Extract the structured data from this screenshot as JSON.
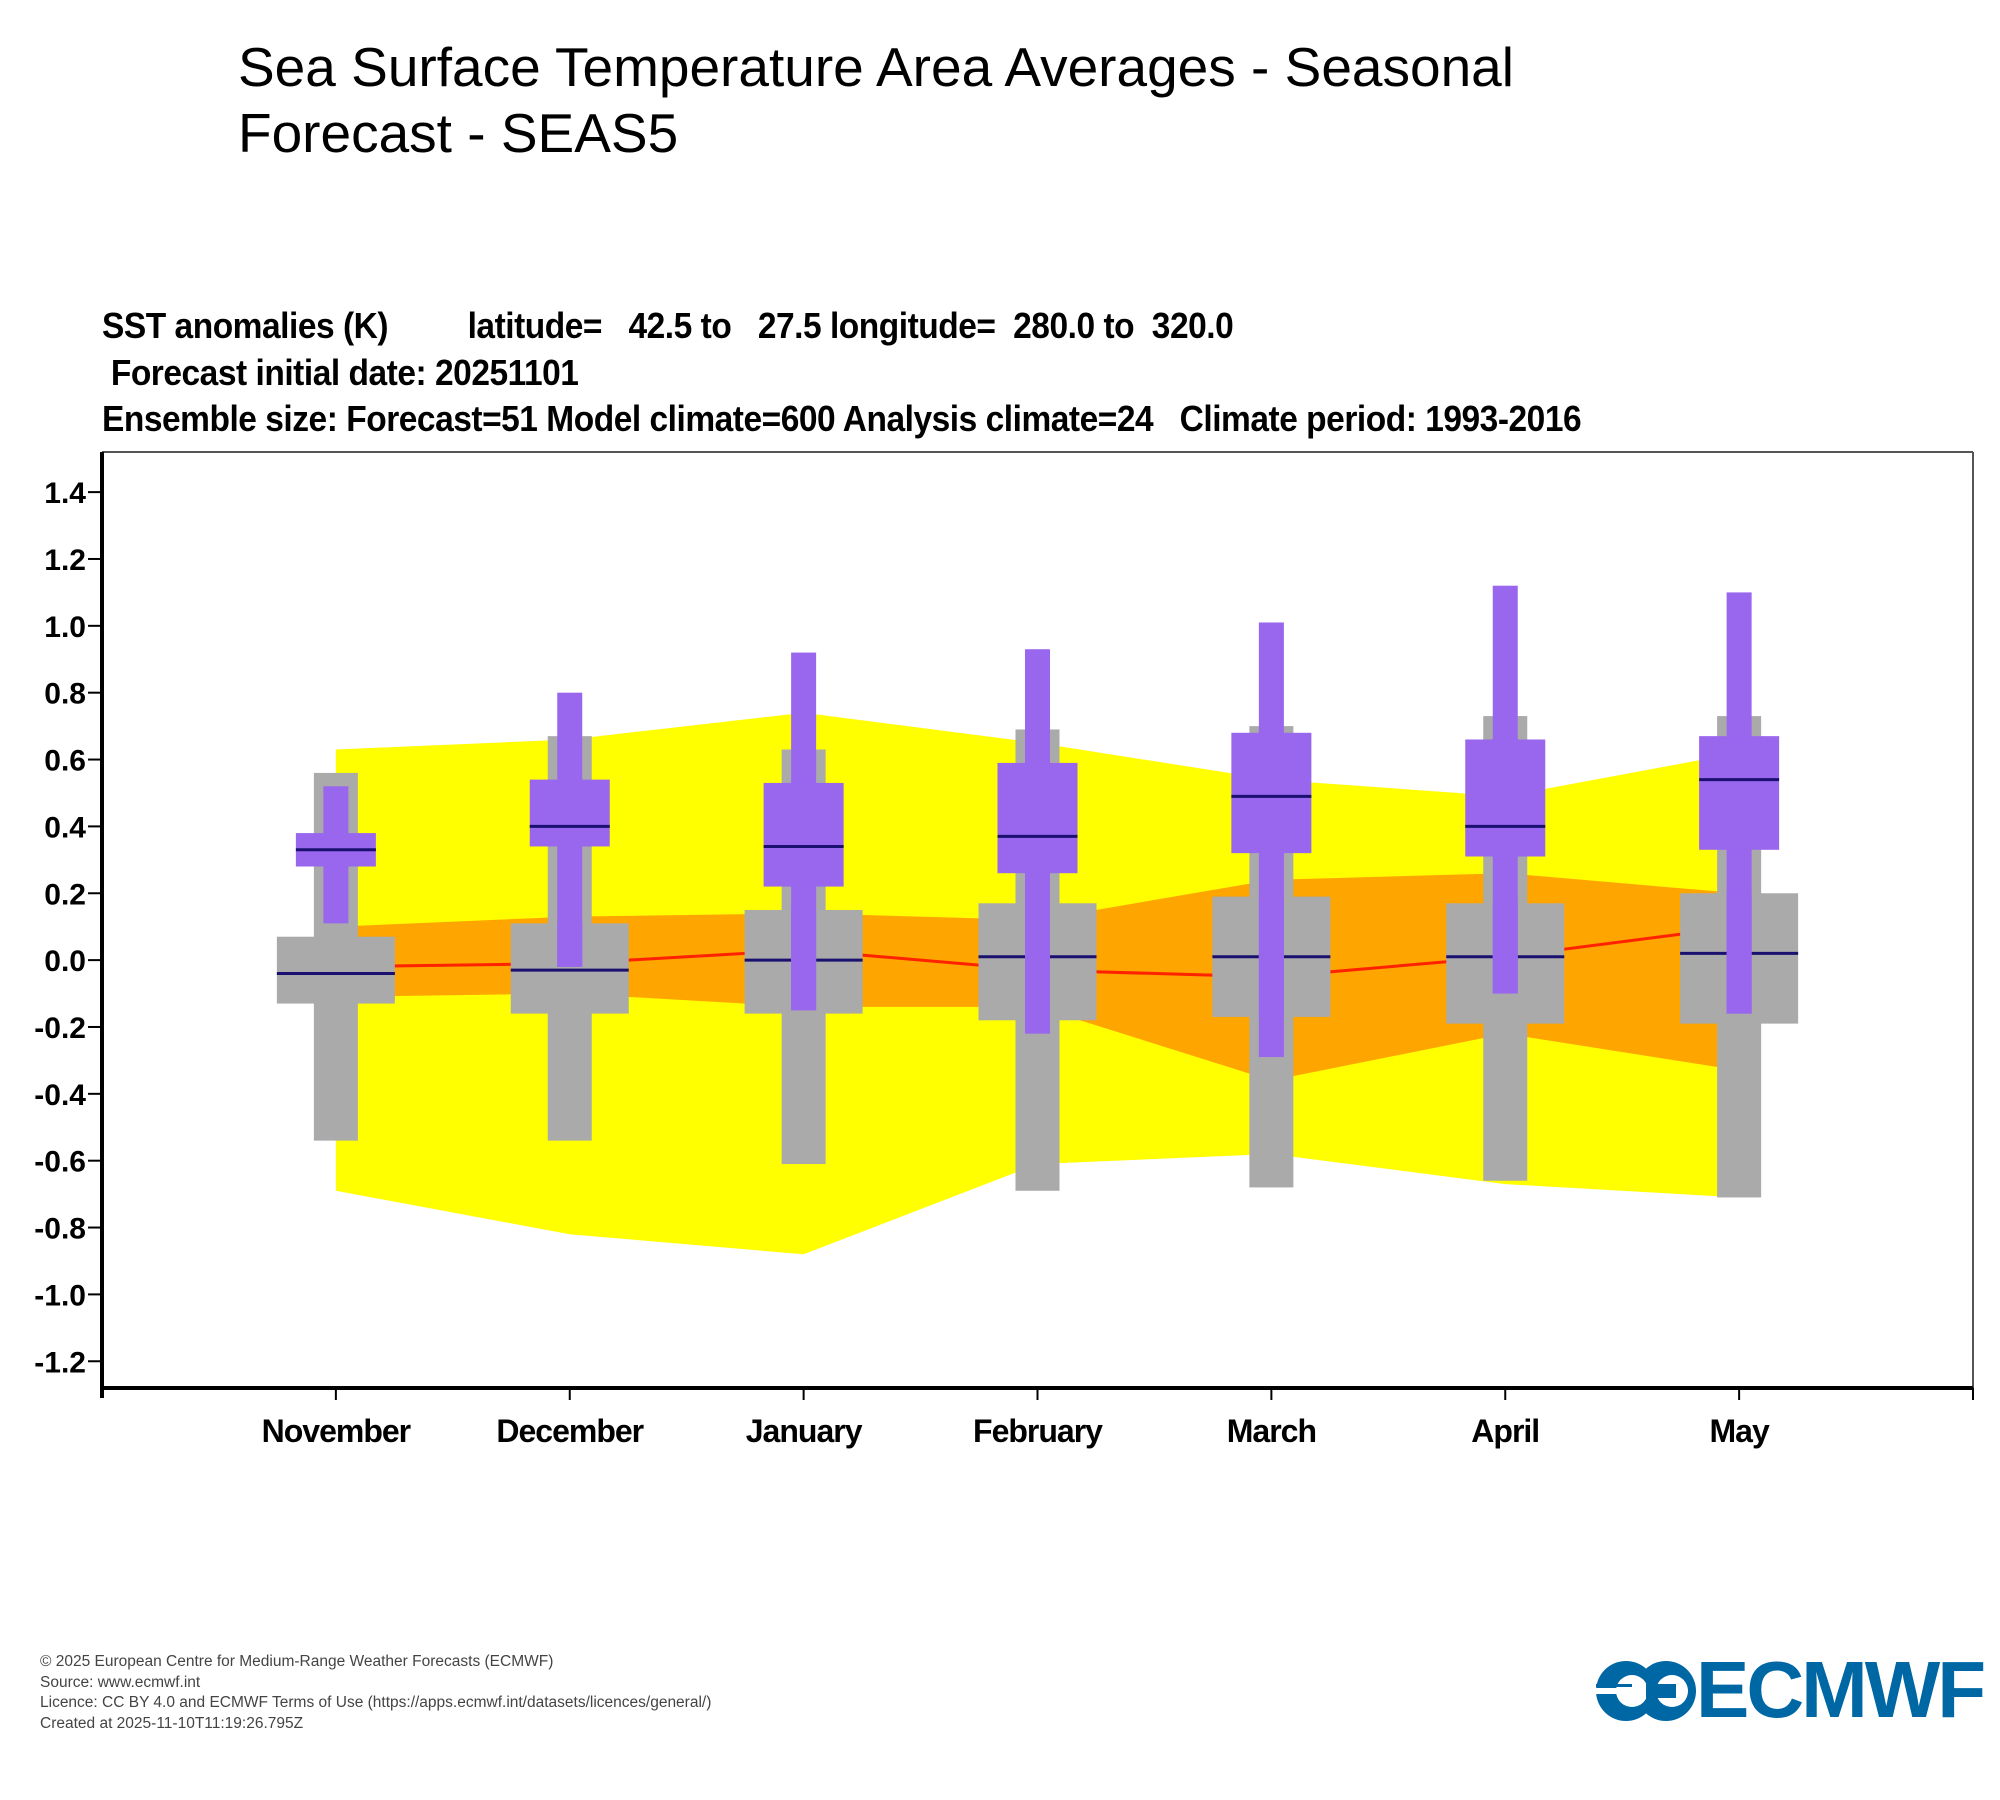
{
  "page": {
    "title": "Sea Surface Temperature Area Averages - Seasonal Forecast - SEAS5"
  },
  "header": {
    "line1": "SST anomalies (K)         latitude=   42.5 to   27.5 longitude=  280.0 to  320.0",
    "line2": " Forecast initial date: 20251101",
    "line3": "Ensemble size: Forecast=51 Model climate=600 Analysis climate=24   Climate period: 1993-2016"
  },
  "footer": {
    "copyright": "© 2025 European Centre for Medium-Range Weather Forecasts (ECMWF)",
    "source": "Source: www.ecmwf.int",
    "licence": "Licence: CC BY 4.0 and ECMWF Terms of Use (https://apps.ecmwf.int/datasets/licences/general/)",
    "created": "Created at 2025-11-10T11:19:26.795Z"
  },
  "logo": {
    "text": "ECMWF",
    "icon": "ecmwf-logo-icon",
    "color": "#0067A5"
  },
  "colors": {
    "analysis_outer": "#FFFF00",
    "analysis_inner": "#FFA500",
    "analysis_median": "#FF2200",
    "model_climate": "#AAAAAA",
    "forecast": "#9966EE",
    "median_line": "#1A1070"
  },
  "chart_data": {
    "type": "box-plot-with-bands",
    "title": "SST anomalies (K)",
    "xlabel": "",
    "ylabel": "SST anomalies (K)",
    "categories": [
      "November",
      "December",
      "January",
      "February",
      "March",
      "April",
      "May"
    ],
    "xlim": [
      -1,
      7
    ],
    "ylim": [
      -1.28,
      1.52
    ],
    "yticks": [
      1.4,
      1.2,
      1.0,
      0.8,
      0.6,
      0.4,
      0.2,
      0.0,
      -0.2,
      -0.4,
      -0.6,
      -0.8,
      -1.0,
      -1.2
    ],
    "ytick_labels": [
      "1.4",
      "1.2",
      "1.0",
      "0.8",
      "0.6",
      "0.4",
      "0.2",
      "0.0",
      "-0.2",
      "-0.4",
      "-0.6",
      "-0.8",
      "-1.0",
      "-1.2"
    ],
    "grid": false,
    "analysis_climate_bands": {
      "outer": {
        "upper": [
          0.63,
          0.66,
          0.74,
          0.65,
          0.54,
          0.49,
          0.62
        ],
        "lower": [
          -0.69,
          -0.82,
          -0.88,
          -0.61,
          -0.58,
          -0.67,
          -0.71
        ]
      },
      "inner": {
        "upper": [
          0.1,
          0.13,
          0.14,
          0.12,
          0.24,
          0.26,
          0.2
        ],
        "lower": [
          -0.11,
          -0.1,
          -0.14,
          -0.14,
          -0.36,
          -0.22,
          -0.33
        ]
      },
      "median": [
        -0.02,
        -0.01,
        0.03,
        -0.03,
        -0.05,
        0.01,
        0.1
      ]
    },
    "series": [
      {
        "name": "Model climate",
        "min": [
          -0.54,
          -0.54,
          -0.61,
          -0.69,
          -0.68,
          -0.66,
          -0.71
        ],
        "q1": [
          -0.13,
          -0.16,
          -0.16,
          -0.18,
          -0.17,
          -0.19,
          -0.19
        ],
        "median": [
          -0.04,
          -0.03,
          0.0,
          0.01,
          0.01,
          0.01,
          0.02
        ],
        "q3": [
          0.07,
          0.11,
          0.15,
          0.17,
          0.19,
          0.17,
          0.2
        ],
        "max": [
          0.56,
          0.67,
          0.63,
          0.69,
          0.7,
          0.73,
          0.73
        ]
      },
      {
        "name": "Forecast",
        "min": [
          0.11,
          -0.02,
          -0.15,
          -0.22,
          -0.29,
          -0.1,
          -0.16
        ],
        "q1": [
          0.28,
          0.34,
          0.22,
          0.26,
          0.32,
          0.31,
          0.33
        ],
        "median": [
          0.33,
          0.4,
          0.34,
          0.37,
          0.49,
          0.4,
          0.54
        ],
        "q3": [
          0.38,
          0.54,
          0.53,
          0.59,
          0.68,
          0.66,
          0.67
        ],
        "max": [
          0.52,
          0.8,
          0.92,
          0.93,
          1.01,
          1.12,
          1.1
        ]
      }
    ]
  }
}
